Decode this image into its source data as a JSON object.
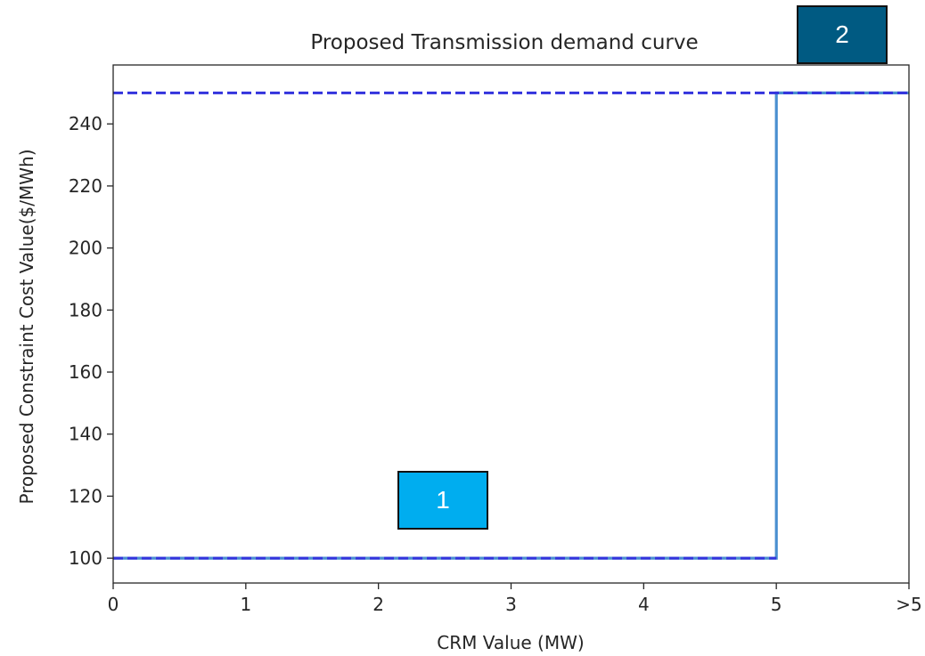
{
  "chart_data": {
    "type": "line",
    "title": "Proposed Transmission demand curve",
    "xlabel": "CRM Value (MW)",
    "ylabel": "Proposed Constraint Cost Value($/MWh)",
    "xlim": [
      0,
      6
    ],
    "ylim": [
      92,
      259
    ],
    "x_ticks": [
      0,
      1,
      2,
      3,
      4,
      5,
      6
    ],
    "x_tick_labels": [
      "0",
      "1",
      "2",
      "3",
      "4",
      "5",
      ">5"
    ],
    "y_ticks": [
      100,
      120,
      140,
      160,
      180,
      200,
      220,
      240
    ],
    "y_tick_labels": [
      "100",
      "120",
      "140",
      "160",
      "180",
      "200",
      "220",
      "240"
    ],
    "grid": false,
    "series": [
      {
        "style": "solid",
        "color": "#4a8fd0",
        "x": [
          0,
          5,
          5,
          6
        ],
        "y": [
          100,
          100,
          250,
          250
        ]
      },
      {
        "style": "dashed",
        "color": "#3333dd",
        "x": [
          0,
          6
        ],
        "y": [
          250,
          250
        ]
      },
      {
        "style": "dashed",
        "color": "#3333dd",
        "x": [
          0,
          5
        ],
        "y": [
          100,
          100
        ]
      }
    ]
  },
  "badges": [
    {
      "label": "1",
      "color": "#00adef"
    },
    {
      "label": "2",
      "color": "#005a82"
    }
  ]
}
